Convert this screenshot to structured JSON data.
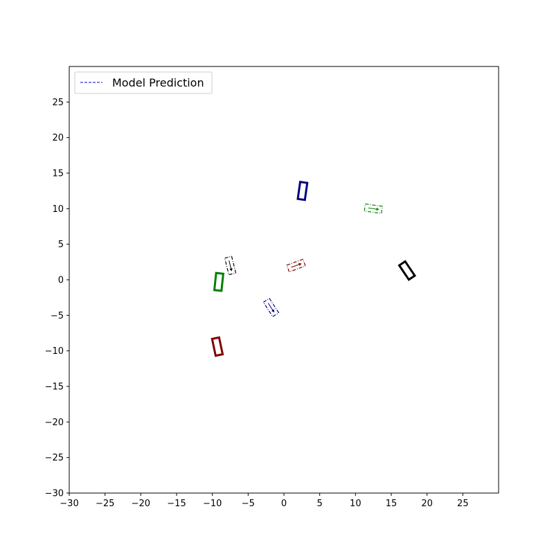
{
  "chart_data": {
    "type": "scatter",
    "title": "",
    "xlabel": "",
    "ylabel": "",
    "xlim": [
      -30,
      30
    ],
    "ylim": [
      -30,
      30
    ],
    "grid": false,
    "xticks": [
      -30,
      -25,
      -20,
      -15,
      -10,
      -5,
      0,
      5,
      10,
      15,
      20,
      25
    ],
    "yticks": [
      -30,
      -25,
      -20,
      -15,
      -10,
      -5,
      0,
      5,
      10,
      15,
      20,
      25
    ],
    "xtick_labels": [
      "−30",
      "−25",
      "−20",
      "−15",
      "−10",
      "−5",
      "0",
      "5",
      "10",
      "15",
      "20",
      "25"
    ],
    "ytick_labels": [
      "−30",
      "−25",
      "−20",
      "−15",
      "−10",
      "−5",
      "0",
      "5",
      "10",
      "15",
      "20",
      "25"
    ],
    "legend": {
      "placement": "top-left",
      "entries": [
        {
          "label": "Model Prediction",
          "color": "#0000cc",
          "style": "dashed"
        }
      ]
    },
    "vehicles": [
      {
        "id": "blue",
        "color": "#000080",
        "actual": {
          "x": 2.6,
          "y": 12.5,
          "heading_deg": 82
        },
        "predicted": {
          "x": -1.8,
          "y": -3.9,
          "heading_deg": -57
        }
      },
      {
        "id": "green",
        "color": "#008000",
        "actual": {
          "x": -9.1,
          "y": -0.3,
          "heading_deg": 84
        },
        "predicted": {
          "x": 12.5,
          "y": 10.0,
          "heading_deg": -8
        }
      },
      {
        "id": "black",
        "color": "#000000",
        "actual": {
          "x": 17.2,
          "y": 1.3,
          "heading_deg": -56
        },
        "predicted": {
          "x": -7.5,
          "y": 2.0,
          "heading_deg": -76
        }
      },
      {
        "id": "red",
        "color": "#800000",
        "actual": {
          "x": -9.3,
          "y": -9.4,
          "heading_deg": -78
        },
        "predicted": {
          "x": 1.7,
          "y": 2.0,
          "heading_deg": 20
        }
      }
    ],
    "vehicle_size": {
      "length": 2.4,
      "width": 1.0
    }
  }
}
